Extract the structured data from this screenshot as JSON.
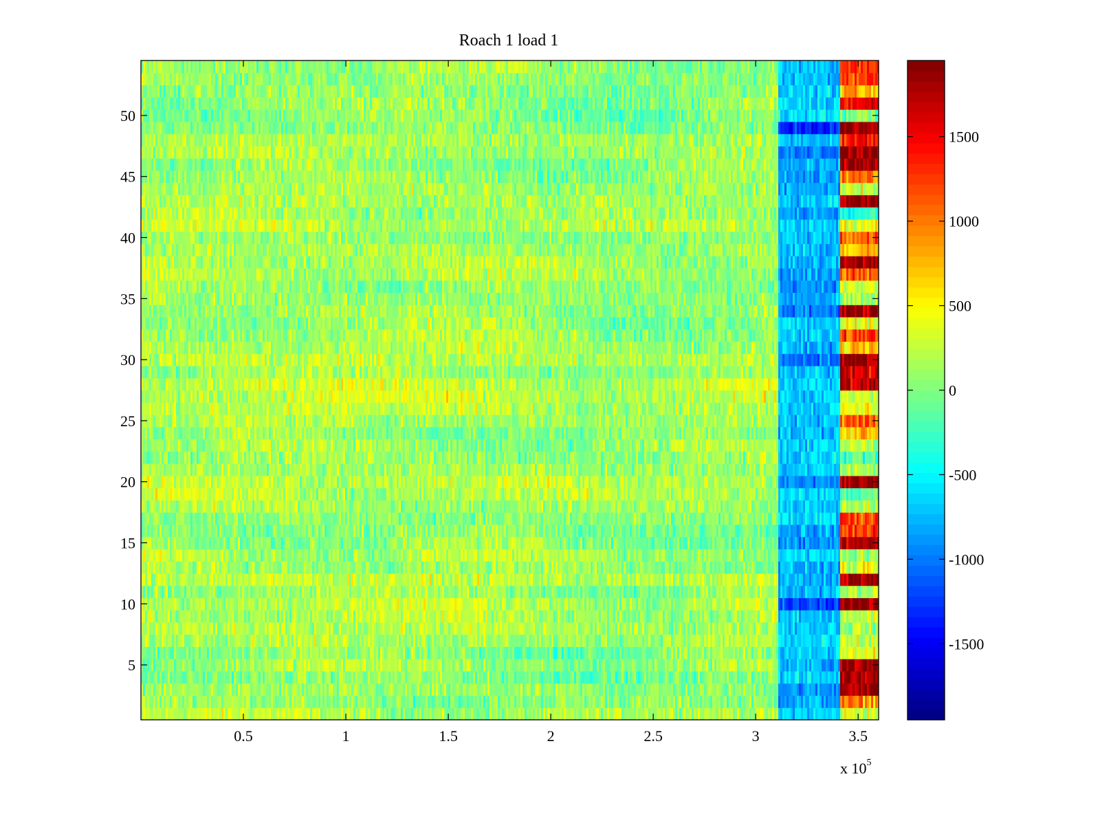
{
  "chart_data": {
    "type": "heatmap",
    "title": "Roach 1 load 1",
    "xlabel": "",
    "ylabel": "",
    "x_multiplier": {
      "base": "x 10",
      "exponent": "5"
    },
    "xlim": [
      0,
      3.6
    ],
    "ylim": [
      0.5,
      54.5
    ],
    "x_ticks": [
      0.5,
      1,
      1.5,
      2,
      2.5,
      3,
      3.5
    ],
    "x_tick_labels": [
      "0.5",
      "1",
      "1.5",
      "2",
      "2.5",
      "3",
      "3.5"
    ],
    "y_ticks": [
      5,
      10,
      15,
      20,
      25,
      30,
      35,
      40,
      45,
      50
    ],
    "y_tick_labels": [
      "5",
      "10",
      "15",
      "20",
      "25",
      "30",
      "35",
      "40",
      "45",
      "50"
    ],
    "rows": 54,
    "colormap": "jet",
    "clim": [
      -1950,
      1950
    ],
    "colorbar": {
      "ticks": [
        -1500,
        -1000,
        -500,
        0,
        500,
        1000,
        1500
      ],
      "tick_labels": [
        "-1500",
        "-1000",
        "-500",
        "0",
        "500",
        "1000",
        "1500"
      ]
    },
    "segments": [
      {
        "x_range": [
          0.0,
          3.11
        ],
        "description": "noise around mean",
        "mean_value": 0,
        "row_means": [
          180,
          60,
          90,
          20,
          140,
          30,
          180,
          210,
          200,
          250,
          120,
          260,
          120,
          200,
          90,
          50,
          60,
          150,
          220,
          260,
          160,
          100,
          120,
          60,
          170,
          250,
          280,
          290,
          120,
          240,
          200,
          150,
          110,
          130,
          110,
          100,
          180,
          200,
          170,
          80,
          220,
          140,
          190,
          160,
          110,
          70,
          150,
          180,
          60,
          40,
          80,
          70,
          100,
          130
        ],
        "noise": 260
      },
      {
        "x_range": [
          3.11,
          3.41
        ],
        "description": "negative band",
        "row_means": [
          -650,
          -800,
          -900,
          -650,
          -800,
          -700,
          -650,
          -650,
          -700,
          -1150,
          -750,
          -800,
          -800,
          -650,
          -900,
          -800,
          -650,
          -700,
          -650,
          -950,
          -700,
          -650,
          -600,
          -750,
          -700,
          -650,
          -700,
          -650,
          -700,
          -1000,
          -800,
          -700,
          -700,
          -1000,
          -800,
          -850,
          -900,
          -800,
          -750,
          -700,
          -700,
          -850,
          -650,
          -800,
          -900,
          -850,
          -950,
          -700,
          -1300,
          -600,
          -650,
          -650,
          -750,
          -700
        ],
        "noise": 260
      },
      {
        "x_range": [
          3.41,
          3.6
        ],
        "description": "high-value band",
        "row_means": [
          350,
          900,
          1850,
          1850,
          1850,
          350,
          200,
          150,
          250,
          1850,
          150,
          1850,
          300,
          150,
          1850,
          1200,
          1200,
          150,
          -100,
          1850,
          150,
          -150,
          250,
          700,
          1100,
          400,
          250,
          1750,
          1700,
          1850,
          700,
          1200,
          400,
          1850,
          50,
          300,
          1200,
          1850,
          700,
          1100,
          400,
          -350,
          1850,
          300,
          1000,
          1850,
          1850,
          1400,
          1850,
          0,
          1500,
          700,
          1200,
          1350
        ],
        "noise": 330
      }
    ]
  }
}
